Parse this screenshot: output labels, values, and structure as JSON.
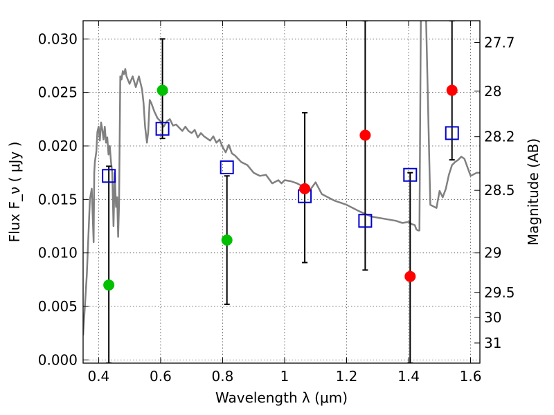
{
  "chart_data": {
    "type": "scatter",
    "xlabel": "Wavelength  λ (μm)",
    "ylabel": "Flux  F_ν  ( μJy )",
    "y2label": "Magnitude (AB)",
    "xlim": [
      0.35,
      1.63
    ],
    "ylim": [
      -0.0003,
      0.0317
    ],
    "x_ticks": [
      0.4,
      0.6,
      0.8,
      1.0,
      1.2,
      1.4,
      1.6
    ],
    "x_tick_labels": [
      "0.4",
      "0.6",
      "0.8",
      "1",
      "1.2",
      "1.4",
      "1.6"
    ],
    "y_ticks": [
      0.0,
      0.005,
      0.01,
      0.015,
      0.02,
      0.025,
      0.03
    ],
    "y_tick_labels": [
      "0.000",
      "0.005",
      "0.010",
      "0.015",
      "0.020",
      "0.025",
      "0.030"
    ],
    "y2_ticks": [
      {
        "flux": 0.02966,
        "label": "27.7"
      },
      {
        "flux": 0.02512,
        "label": "28"
      },
      {
        "flux": 0.02086,
        "label": "28.2"
      },
      {
        "flux": 0.01585,
        "label": "28.5"
      },
      {
        "flux": 0.01,
        "label": "29"
      },
      {
        "flux": 0.00631,
        "label": "29.5"
      },
      {
        "flux": 0.00398,
        "label": "30"
      },
      {
        "flux": 0.00158,
        "label": "31"
      }
    ],
    "grid": true,
    "colors": {
      "model": "#808080",
      "green": "#00c000",
      "red": "#ff0000",
      "square": "#0000cc",
      "errorbar": "#000000"
    },
    "model_spectrum": {
      "x": [
        0.35,
        0.362,
        0.372,
        0.378,
        0.384,
        0.386,
        0.388,
        0.393,
        0.396,
        0.4,
        0.404,
        0.408,
        0.412,
        0.416,
        0.42,
        0.424,
        0.428,
        0.432,
        0.436,
        0.44,
        0.444,
        0.448,
        0.452,
        0.456,
        0.46,
        0.463,
        0.466,
        0.47,
        0.474,
        0.478,
        0.482,
        0.486,
        0.49,
        0.5,
        0.51,
        0.52,
        0.53,
        0.54,
        0.545,
        0.55,
        0.556,
        0.56,
        0.565,
        0.57,
        0.58,
        0.59,
        0.6,
        0.605,
        0.61,
        0.62,
        0.63,
        0.64,
        0.65,
        0.66,
        0.67,
        0.68,
        0.69,
        0.7,
        0.71,
        0.72,
        0.73,
        0.74,
        0.75,
        0.76,
        0.77,
        0.78,
        0.79,
        0.8,
        0.81,
        0.82,
        0.83,
        0.84,
        0.86,
        0.88,
        0.9,
        0.92,
        0.94,
        0.96,
        0.98,
        0.99,
        1.0,
        1.02,
        1.04,
        1.06,
        1.08,
        1.1,
        1.12,
        1.16,
        1.2,
        1.24,
        1.28,
        1.32,
        1.36,
        1.38,
        1.4,
        1.41,
        1.42,
        1.425,
        1.43,
        1.435,
        1.44,
        1.447,
        1.455,
        1.47,
        1.49,
        1.5,
        1.51,
        1.52,
        1.53,
        1.54,
        1.55,
        1.56,
        1.57,
        1.58,
        1.59,
        1.6,
        1.62,
        1.63
      ],
      "y": [
        0.0023,
        0.008,
        0.015,
        0.016,
        0.011,
        0.0175,
        0.0185,
        0.0195,
        0.0213,
        0.0218,
        0.0205,
        0.0222,
        0.0215,
        0.0206,
        0.0218,
        0.0203,
        0.0208,
        0.0192,
        0.02,
        0.0185,
        0.0175,
        0.0125,
        0.0175,
        0.0143,
        0.0152,
        0.0115,
        0.0145,
        0.0265,
        0.0262,
        0.027,
        0.0267,
        0.0272,
        0.0265,
        0.0258,
        0.0265,
        0.0255,
        0.0265,
        0.0253,
        0.024,
        0.0218,
        0.0203,
        0.0213,
        0.0243,
        0.024,
        0.0232,
        0.0226,
        0.0223,
        0.022,
        0.0218,
        0.0223,
        0.0225,
        0.0219,
        0.022,
        0.0217,
        0.0214,
        0.0218,
        0.0214,
        0.0212,
        0.0215,
        0.0208,
        0.0212,
        0.0209,
        0.0207,
        0.0205,
        0.0209,
        0.0203,
        0.0206,
        0.0199,
        0.0194,
        0.0201,
        0.0193,
        0.0191,
        0.0185,
        0.0182,
        0.0175,
        0.0172,
        0.0173,
        0.0165,
        0.0168,
        0.0165,
        0.0168,
        0.0167,
        0.0165,
        0.0162,
        0.0158,
        0.0166,
        0.0155,
        0.0149,
        0.0145,
        0.0139,
        0.0134,
        0.0132,
        0.013,
        0.0128,
        0.0129,
        0.0127,
        0.0126,
        0.0122,
        0.0121,
        0.0121,
        0.0335,
        0.0335,
        0.0335,
        0.0145,
        0.0142,
        0.0158,
        0.0152,
        0.016,
        0.0173,
        0.0182,
        0.0185,
        0.0187,
        0.019,
        0.0188,
        0.018,
        0.0172,
        0.0175,
        0.0175
      ]
    },
    "green_points": [
      {
        "x": 0.433,
        "y": 0.007
      },
      {
        "x": 0.606,
        "y": 0.0252
      },
      {
        "x": 0.814,
        "y": 0.0112
      }
    ],
    "red_points": [
      {
        "x": 1.065,
        "y": 0.016
      },
      {
        "x": 1.26,
        "y": 0.021
      },
      {
        "x": 1.405,
        "y": 0.0078
      },
      {
        "x": 1.54,
        "y": 0.0252
      }
    ],
    "square_points": [
      {
        "x": 0.433,
        "y": 0.0172,
        "err_low": -0.0003,
        "err_high": 0.0181
      },
      {
        "x": 0.606,
        "y": 0.0216,
        "err_low": 0.0207,
        "err_high": 0.03
      },
      {
        "x": 0.814,
        "y": 0.018,
        "err_low": 0.0052,
        "err_high": 0.0172
      },
      {
        "x": 1.065,
        "y": 0.0153,
        "err_low": 0.0091,
        "err_high": 0.0231
      },
      {
        "x": 1.26,
        "y": 0.013,
        "err_low": 0.0084,
        "err_high": 0.0317
      },
      {
        "x": 1.405,
        "y": 0.0173,
        "err_low": -0.0003,
        "err_high": 0.0175
      },
      {
        "x": 1.54,
        "y": 0.0212,
        "err_low": 0.0187,
        "err_high": 0.0317
      }
    ]
  }
}
